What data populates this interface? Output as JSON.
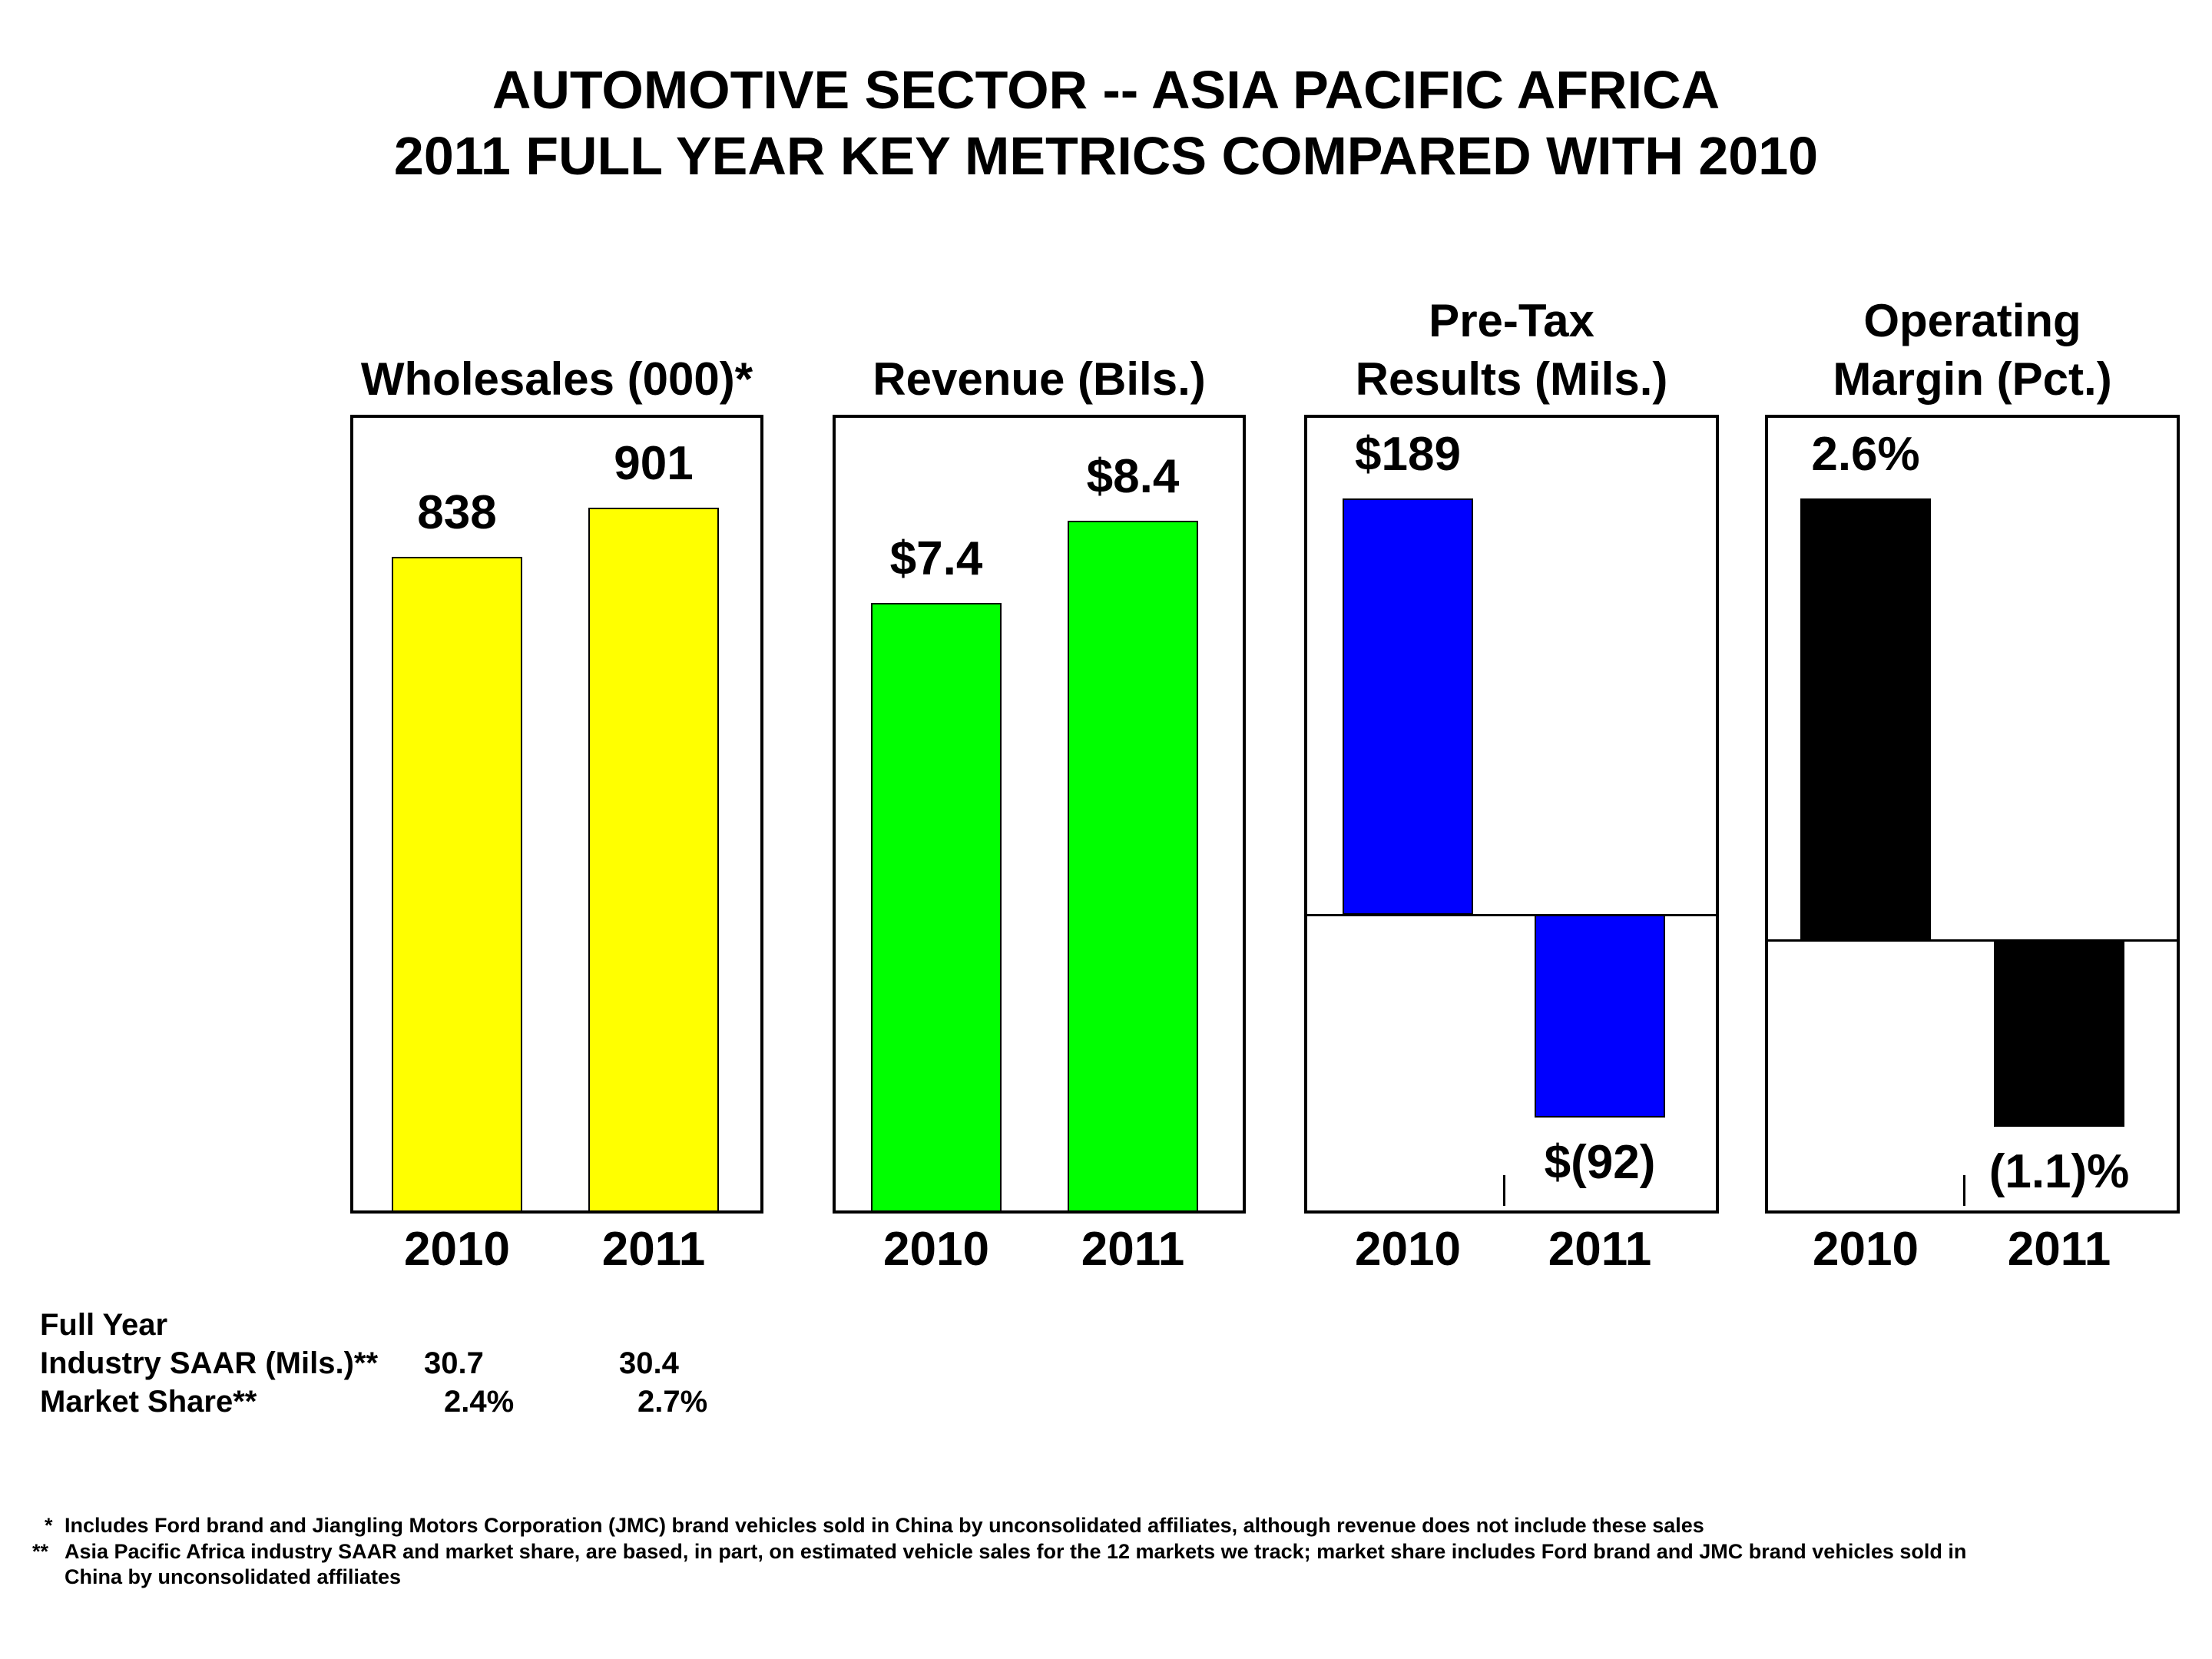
{
  "title": {
    "line1": "AUTOMOTIVE SECTOR -- ASIA PACIFIC AFRICA",
    "line2": "2011 FULL YEAR KEY METRICS COMPARED WITH 2010"
  },
  "chart_data": [
    {
      "type": "bar",
      "title": "Wholesales (000)*",
      "categories": [
        "2010",
        "2011"
      ],
      "values": [
        838,
        901
      ],
      "value_labels": [
        "838",
        "901"
      ],
      "color": "#FFFF00",
      "ylim": [
        0,
        1000
      ]
    },
    {
      "type": "bar",
      "title": "Revenue (Bils.)",
      "categories": [
        "2010",
        "2011"
      ],
      "values": [
        7.4,
        8.4
      ],
      "value_labels": [
        "$7.4",
        "$8.4"
      ],
      "color": "#00FF00",
      "ylim": [
        0,
        9.5
      ]
    },
    {
      "type": "bar",
      "title_line1": "Pre-Tax",
      "title_line2": "Results (Mils.)",
      "categories": [
        "2010",
        "2011"
      ],
      "values": [
        189,
        -92
      ],
      "value_labels": [
        "$189",
        "$(92)"
      ],
      "color": "#0000FF",
      "ylim": [
        -135,
        220
      ]
    },
    {
      "type": "bar",
      "title_line1": "Operating",
      "title_line2": "Margin (Pct.)",
      "categories": [
        "2010",
        "2011"
      ],
      "values": [
        2.6,
        -1.1
      ],
      "value_labels": [
        "2.6%",
        "(1.1)%"
      ],
      "color": "#000000",
      "ylim": [
        -1.6,
        3.0
      ]
    }
  ],
  "stats": {
    "header": "Full Year",
    "rows": [
      {
        "label": "Industry SAAR (Mils.)**",
        "v2010": "30.7",
        "v2011": "30.4"
      },
      {
        "label": "Market Share**",
        "v2010": "2.4%",
        "v2011": "2.7%"
      }
    ]
  },
  "footnotes": {
    "f1_mark": "*",
    "f1_text": "Includes Ford brand and Jiangling Motors Corporation (JMC) brand vehicles sold in China by unconsolidated affiliates, although revenue does not include these sales",
    "f2_mark": "**",
    "f2_text_line1": "Asia Pacific Africa industry SAAR and market share, are based, in part, on estimated vehicle sales for the 12 markets we track; market share includes Ford brand and JMC brand vehicles sold in",
    "f2_text_line2": "China by unconsolidated affiliates"
  }
}
